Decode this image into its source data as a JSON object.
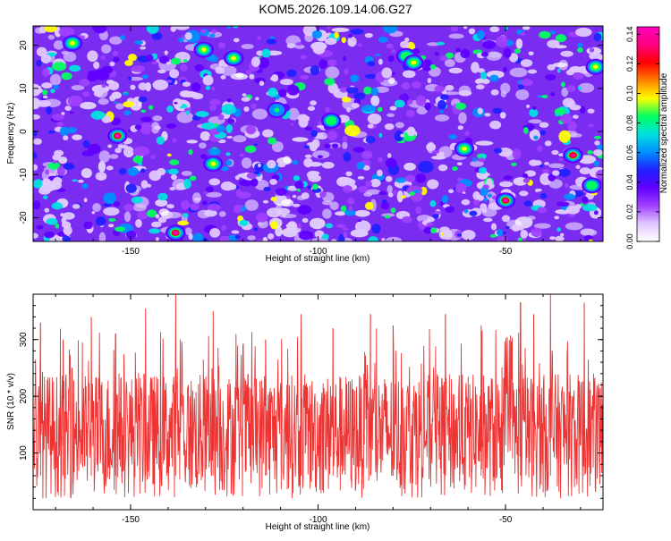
{
  "title": "KOM5.2026.109.14.06.G27",
  "chart_data": [
    {
      "type": "heatmap",
      "title": "KOM5.2026.109.14.06.G27",
      "xlabel": "Height of straight line (km)",
      "ylabel": "Frequency (Hz)",
      "xlim": [
        -176,
        -24
      ],
      "ylim": [
        -25.5,
        24.5
      ],
      "xticks": [
        -150,
        -100,
        -50
      ],
      "yticks": [
        20,
        10,
        0,
        -10,
        -20
      ],
      "colorbar": {
        "label": "Normalized spectral amplitude",
        "range": [
          0,
          0.145
        ],
        "ticks": [
          0.0,
          0.02,
          0.04,
          0.06,
          0.08,
          0.1,
          0.12,
          0.14
        ],
        "colormap": [
          "#ffffff",
          "#e0c8ff",
          "#a040ff",
          "#6000ff",
          "#2020ff",
          "#0090ff",
          "#00e0e0",
          "#00ff60",
          "#ffff00",
          "#ff8000",
          "#ff0000",
          "#ff0080",
          "#ff00c0"
        ]
      },
      "hotspots": [
        {
          "x": -165.5,
          "y": 20.5,
          "v": 0.1
        },
        {
          "x": -153.5,
          "y": -1.0,
          "v": 0.14
        },
        {
          "x": -138.0,
          "y": -23.5,
          "v": 0.14
        },
        {
          "x": -130.5,
          "y": 19.0,
          "v": 0.1
        },
        {
          "x": -128.0,
          "y": -7.5,
          "v": 0.1
        },
        {
          "x": -122.5,
          "y": 17.0,
          "v": 0.1
        },
        {
          "x": -111.0,
          "y": 5.0,
          "v": 0.08
        },
        {
          "x": -96.5,
          "y": 2.5,
          "v": 0.09
        },
        {
          "x": -76.5,
          "y": 17.5,
          "v": 0.09
        },
        {
          "x": -74.5,
          "y": 16.0,
          "v": 0.1
        },
        {
          "x": -61.0,
          "y": -4.0,
          "v": 0.1
        },
        {
          "x": -50.0,
          "y": -16.0,
          "v": 0.14
        },
        {
          "x": -32.0,
          "y": -5.5,
          "v": 0.13
        },
        {
          "x": -26.0,
          "y": 15.0,
          "v": 0.1
        },
        {
          "x": -27.0,
          "y": -12.5,
          "v": 0.09
        }
      ]
    },
    {
      "type": "line",
      "xlabel": "Height of straight line (km)",
      "ylabel": "SNR (10 * v/v)",
      "xlim": [
        -176,
        -24
      ],
      "ylim": [
        0,
        380
      ],
      "xticks": [
        -150,
        -100,
        -50
      ],
      "yticks": [
        100,
        200,
        300
      ],
      "color": "#ee3333",
      "baseline_band": [
        20,
        240
      ],
      "peaks": [
        {
          "x": -174.0,
          "y": 330
        },
        {
          "x": -168.0,
          "y": 300
        },
        {
          "x": -160.5,
          "y": 340
        },
        {
          "x": -154.0,
          "y": 310
        },
        {
          "x": -146.0,
          "y": 355
        },
        {
          "x": -138.0,
          "y": 380
        },
        {
          "x": -128.0,
          "y": 350
        },
        {
          "x": -114.0,
          "y": 300
        },
        {
          "x": -104.5,
          "y": 345
        },
        {
          "x": -96.0,
          "y": 320
        },
        {
          "x": -86.0,
          "y": 345
        },
        {
          "x": -80.0,
          "y": 325
        },
        {
          "x": -66.0,
          "y": 345
        },
        {
          "x": -56.5,
          "y": 325
        },
        {
          "x": -46.0,
          "y": 365
        },
        {
          "x": -42.5,
          "y": 345
        },
        {
          "x": -38.0,
          "y": 380
        },
        {
          "x": -29.0,
          "y": 365
        }
      ]
    }
  ]
}
